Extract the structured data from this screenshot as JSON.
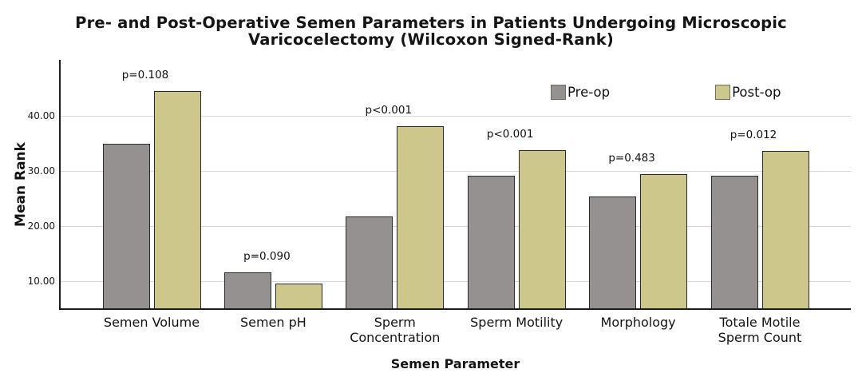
{
  "chart_data": {
    "type": "bar",
    "title": "Pre- and Post-Operative Semen Parameters in Patients Undergoing Microscopic Varicocelectomy (Wilcoxon Signed-Rank)",
    "title_lines": [
      "Pre- and Post-Operative Semen Parameters in Patients Undergoing Microscopic",
      "Varicocelectomy (Wilcoxon Signed-Rank)"
    ],
    "xlabel": "Semen Parameter",
    "ylabel": "Mean Rank",
    "categories": [
      "Semen Volume",
      "Semen pH",
      "Sperm\nConcentration",
      "Sperm Motility",
      "Morphology",
      "Totale Motile\nSperm Count"
    ],
    "series": [
      {
        "name": "Pre-op",
        "color": "#949190",
        "values": [
          35.0,
          11.7,
          21.9,
          29.3,
          25.5,
          29.3
        ]
      },
      {
        "name": "Post-op",
        "color": "#cec78b",
        "values": [
          44.6,
          9.7,
          38.2,
          33.9,
          29.6,
          33.8
        ]
      }
    ],
    "annotations": [
      "p=0.108",
      "p=0.090",
      "p<0.001",
      "p<0.001",
      "p=0.483",
      "p=0.012"
    ],
    "yticks": [
      10,
      20,
      30,
      40
    ],
    "ytick_labels": [
      "10.00",
      "20.00",
      "30.00",
      "40.00"
    ],
    "ylim": [
      5,
      50.3
    ],
    "grid": true,
    "legend_position": "top-right",
    "bar_border_color": "#2b2b2b",
    "grid_color": "#d8d8d8",
    "axis_color": "#1c1c1c",
    "background_color": "#ffffff"
  }
}
